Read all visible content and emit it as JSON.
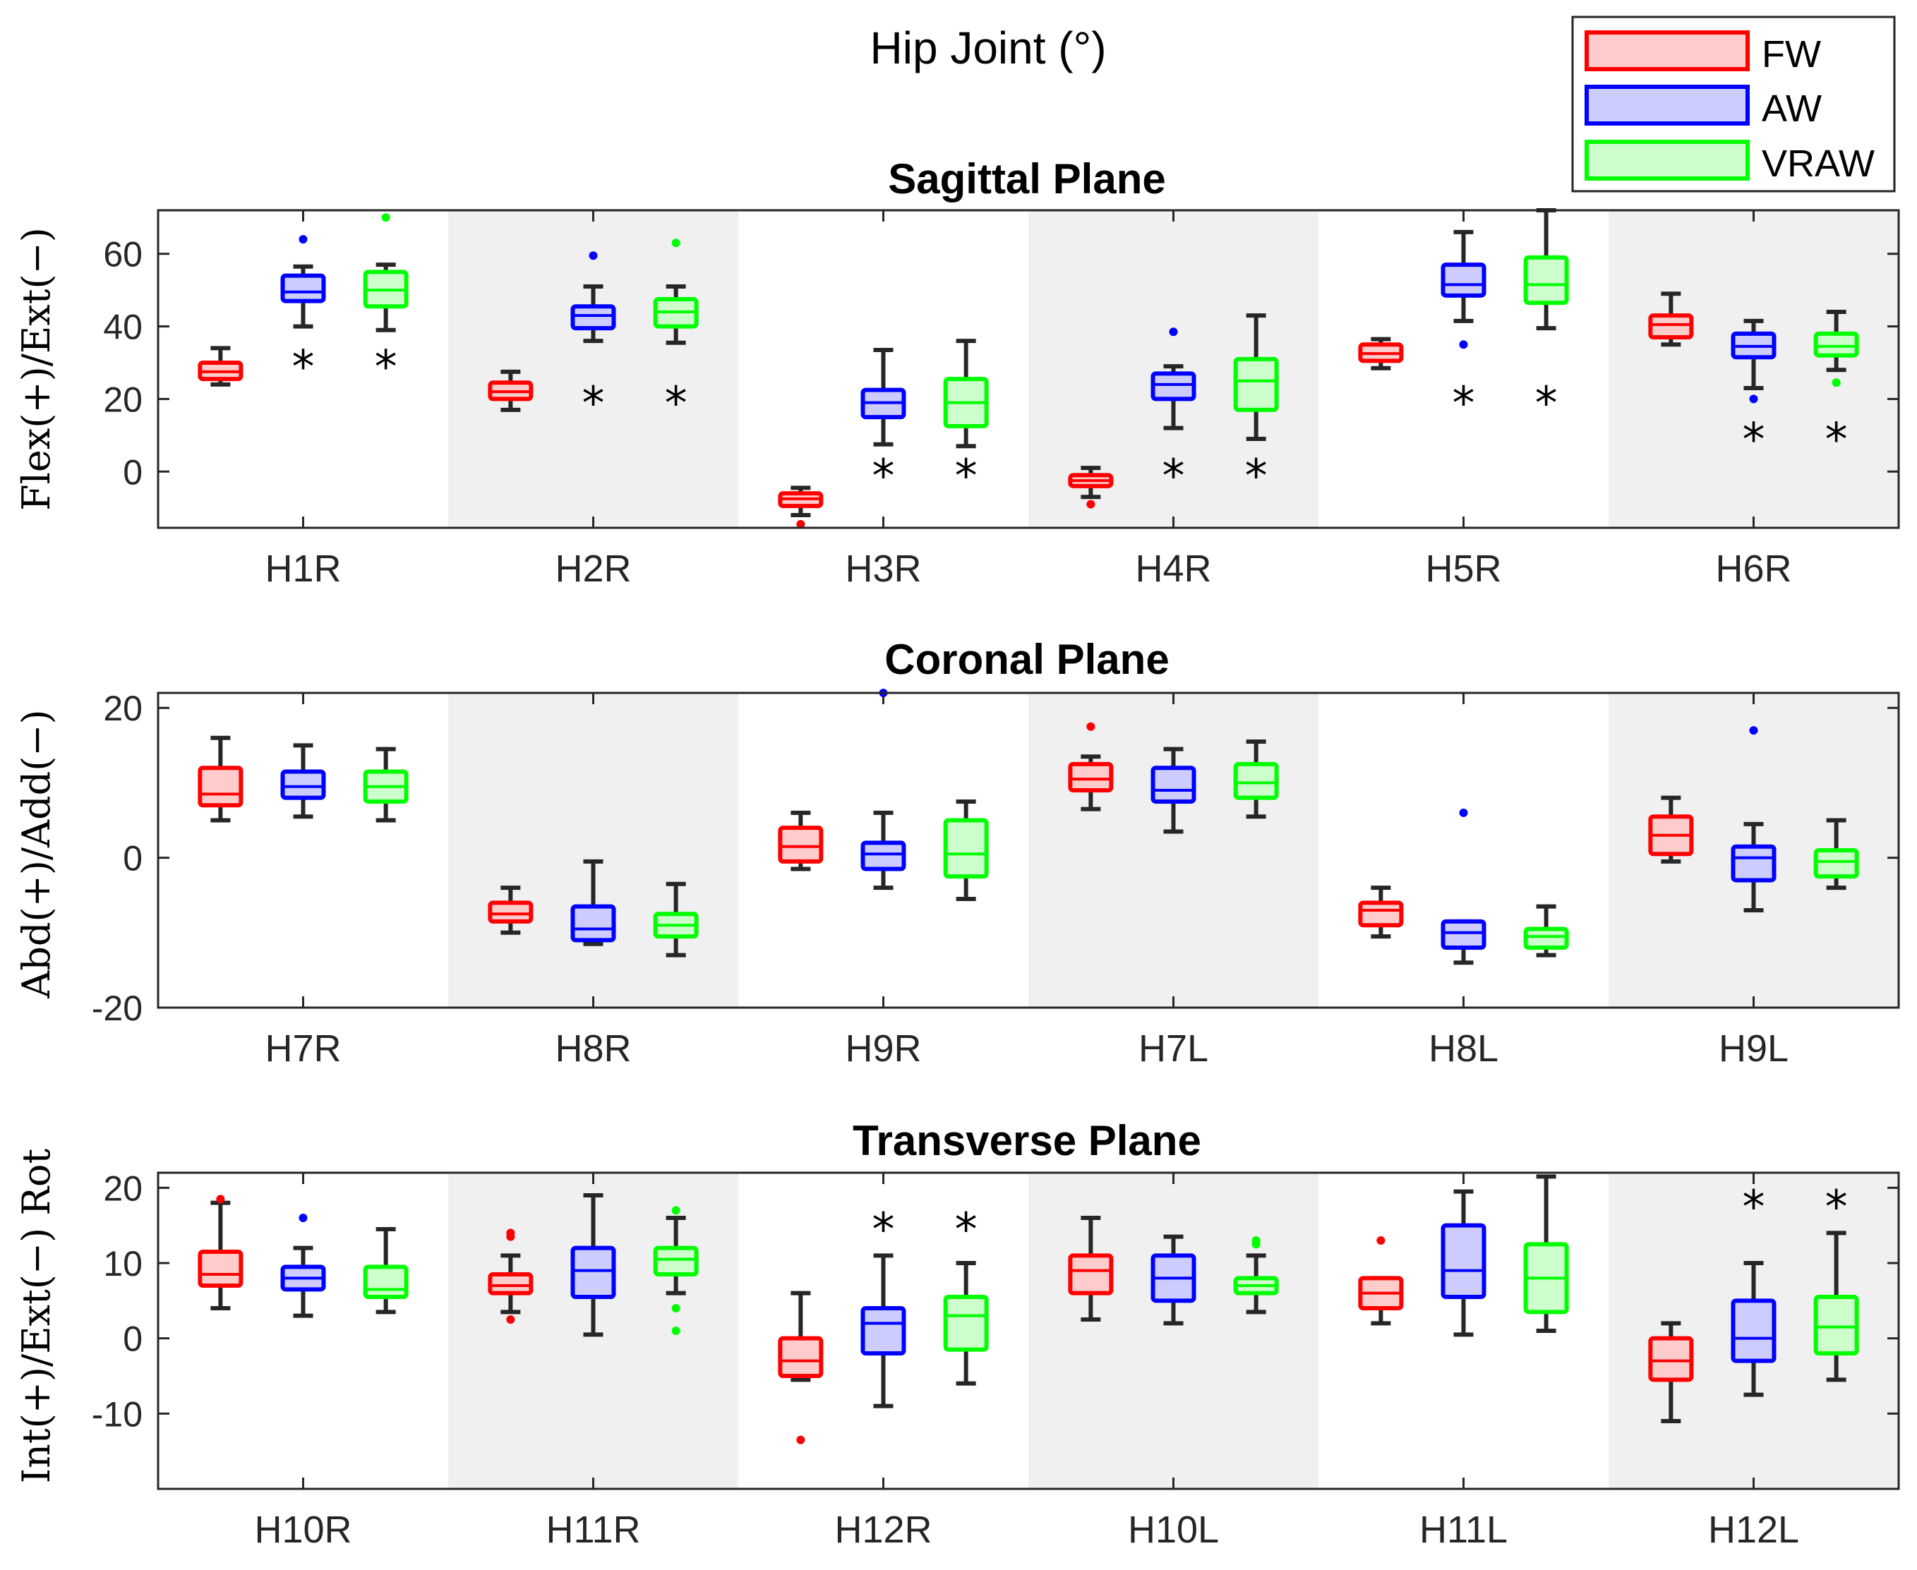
{
  "figure": {
    "title": "Hip Joint (°)"
  },
  "legend": {
    "position": "top-right",
    "entries": [
      {
        "name": "FW",
        "edge": "#ff0000",
        "fill": "#ffcccc"
      },
      {
        "name": "AW",
        "edge": "#0000ff",
        "fill": "#ccccff"
      },
      {
        "name": "VRAW",
        "edge": "#00ff00",
        "fill": "#ccffcc"
      }
    ]
  },
  "colors": {
    "shade": "#f0f0f0",
    "axis": "#262626",
    "whisker": "#262626"
  },
  "chart_data": [
    {
      "type": "box",
      "title": "Sagittal Plane",
      "ylabel": "Flex(+)/Ext(−)",
      "ylim": [
        -15.5,
        72
      ],
      "yticks": [
        0,
        20,
        40,
        60
      ],
      "ytick_labels": [
        "0",
        "20",
        "40",
        "60"
      ],
      "significance_marker": "*",
      "groups": [
        {
          "label": "H1R",
          "shaded": false,
          "boxes": {
            "FW": {
              "min": 24,
              "q1": 25.5,
              "median": 27.5,
              "q3": 30,
              "max": 34,
              "outliers": [],
              "sig": null
            },
            "AW": {
              "min": 40,
              "q1": 47,
              "median": 49.5,
              "q3": 54,
              "max": 56.5,
              "outliers": [
                64
              ],
              "sig": 30
            },
            "VRAW": {
              "min": 39,
              "q1": 45.5,
              "median": 50,
              "q3": 55,
              "max": 57,
              "outliers": [
                70
              ],
              "sig": 30
            }
          }
        },
        {
          "label": "H2R",
          "shaded": true,
          "boxes": {
            "FW": {
              "min": 17,
              "q1": 20,
              "median": 22,
              "q3": 24.5,
              "max": 27.5,
              "outliers": [],
              "sig": null
            },
            "AW": {
              "min": 36,
              "q1": 39.5,
              "median": 43,
              "q3": 45.5,
              "max": 51,
              "outliers": [
                59.5
              ],
              "sig": 20
            },
            "VRAW": {
              "min": 35.5,
              "q1": 40,
              "median": 44,
              "q3": 47.5,
              "max": 51,
              "outliers": [
                63
              ],
              "sig": 20
            }
          }
        },
        {
          "label": "H3R",
          "shaded": false,
          "boxes": {
            "FW": {
              "min": -12,
              "q1": -9.5,
              "median": -7.5,
              "q3": -6,
              "max": -4.5,
              "outliers": [
                -14.5
              ],
              "sig": null
            },
            "AW": {
              "min": 7.5,
              "q1": 15,
              "median": 19,
              "q3": 22.5,
              "max": 33.5,
              "outliers": [],
              "sig": 0
            },
            "VRAW": {
              "min": 7,
              "q1": 12.5,
              "median": 19,
              "q3": 25.5,
              "max": 36,
              "outliers": [],
              "sig": 0
            }
          }
        },
        {
          "label": "H4R",
          "shaded": true,
          "boxes": {
            "FW": {
              "min": -7,
              "q1": -4,
              "median": -2.5,
              "q3": -1,
              "max": 1,
              "outliers": [
                -9
              ],
              "sig": null
            },
            "AW": {
              "min": 12,
              "q1": 20,
              "median": 24,
              "q3": 27,
              "max": 29,
              "outliers": [
                38.5
              ],
              "sig": 0
            },
            "VRAW": {
              "min": 9,
              "q1": 17,
              "median": 25,
              "q3": 31,
              "max": 43,
              "outliers": [],
              "sig": 0
            }
          }
        },
        {
          "label": "H5R",
          "shaded": false,
          "boxes": {
            "FW": {
              "min": 28.5,
              "q1": 30.5,
              "median": 32.5,
              "q3": 35,
              "max": 36.5,
              "outliers": [],
              "sig": null
            },
            "AW": {
              "min": 41.5,
              "q1": 48.5,
              "median": 51.5,
              "q3": 57,
              "max": 66,
              "outliers": [
                35
              ],
              "sig": 20
            },
            "VRAW": {
              "min": 39.5,
              "q1": 46.5,
              "median": 51.5,
              "q3": 59,
              "max": 72,
              "outliers": [],
              "sig": 20
            }
          }
        },
        {
          "label": "H6R",
          "shaded": true,
          "boxes": {
            "FW": {
              "min": 35,
              "q1": 37,
              "median": 40.5,
              "q3": 43,
              "max": 49,
              "outliers": [],
              "sig": null
            },
            "AW": {
              "min": 23,
              "q1": 31.5,
              "median": 34.5,
              "q3": 38,
              "max": 41.5,
              "outliers": [
                20
              ],
              "sig": 10
            },
            "VRAW": {
              "min": 28,
              "q1": 32,
              "median": 34.5,
              "q3": 38,
              "max": 44,
              "outliers": [
                24.5
              ],
              "sig": 10
            }
          }
        }
      ]
    },
    {
      "type": "box",
      "title": "Coronal Plane",
      "ylabel": "Abd(+)/Add(−)",
      "ylim": [
        -20,
        22
      ],
      "yticks": [
        -20,
        0,
        20
      ],
      "ytick_labels": [
        "-20",
        "0",
        "20"
      ],
      "significance_marker": "*",
      "groups": [
        {
          "label": "H7R",
          "shaded": false,
          "boxes": {
            "FW": {
              "min": 5,
              "q1": 7,
              "median": 8.5,
              "q3": 12,
              "max": 16,
              "outliers": [],
              "sig": null
            },
            "AW": {
              "min": 5.5,
              "q1": 8,
              "median": 9.5,
              "q3": 11.5,
              "max": 15,
              "outliers": [],
              "sig": null
            },
            "VRAW": {
              "min": 5,
              "q1": 7.5,
              "median": 9.5,
              "q3": 11.5,
              "max": 14.5,
              "outliers": [],
              "sig": null
            }
          }
        },
        {
          "label": "H8R",
          "shaded": true,
          "boxes": {
            "FW": {
              "min": -10,
              "q1": -8.5,
              "median": -7.5,
              "q3": -6,
              "max": -4,
              "outliers": [],
              "sig": null
            },
            "AW": {
              "min": -11.5,
              "q1": -11,
              "median": -9.5,
              "q3": -6.5,
              "max": -0.5,
              "outliers": [],
              "sig": null
            },
            "VRAW": {
              "min": -13,
              "q1": -10.5,
              "median": -9,
              "q3": -7.5,
              "max": -3.5,
              "outliers": [],
              "sig": null
            }
          }
        },
        {
          "label": "H9R",
          "shaded": false,
          "boxes": {
            "FW": {
              "min": -1.5,
              "q1": -0.5,
              "median": 1.5,
              "q3": 4,
              "max": 6,
              "outliers": [],
              "sig": null
            },
            "AW": {
              "min": -4,
              "q1": -1.5,
              "median": 0.5,
              "q3": 2,
              "max": 6,
              "outliers": [
                22
              ],
              "sig": null
            },
            "VRAW": {
              "min": -5.5,
              "q1": -2.5,
              "median": 0.5,
              "q3": 5,
              "max": 7.5,
              "outliers": [],
              "sig": null
            }
          }
        },
        {
          "label": "H7L",
          "shaded": true,
          "boxes": {
            "FW": {
              "min": 6.5,
              "q1": 9,
              "median": 10.5,
              "q3": 12.5,
              "max": 13.5,
              "outliers": [
                17.5
              ],
              "sig": null
            },
            "AW": {
              "min": 3.5,
              "q1": 7.5,
              "median": 9,
              "q3": 12,
              "max": 14.5,
              "outliers": [],
              "sig": null
            },
            "VRAW": {
              "min": 5.5,
              "q1": 8,
              "median": 10,
              "q3": 12.5,
              "max": 15.5,
              "outliers": [],
              "sig": null
            }
          }
        },
        {
          "label": "H8L",
          "shaded": false,
          "boxes": {
            "FW": {
              "min": -10.5,
              "q1": -9,
              "median": -7,
              "q3": -6,
              "max": -4,
              "outliers": [],
              "sig": null
            },
            "AW": {
              "min": -14,
              "q1": -12,
              "median": -10,
              "q3": -8.5,
              "max": -8.5,
              "outliers": [
                6
              ],
              "sig": null
            },
            "VRAW": {
              "min": -13,
              "q1": -12,
              "median": -10.5,
              "q3": -9.5,
              "max": -6.5,
              "outliers": [],
              "sig": null
            }
          }
        },
        {
          "label": "H9L",
          "shaded": true,
          "boxes": {
            "FW": {
              "min": -0.5,
              "q1": 0.5,
              "median": 3,
              "q3": 5.5,
              "max": 8,
              "outliers": [],
              "sig": null
            },
            "AW": {
              "min": -7,
              "q1": -3,
              "median": 0,
              "q3": 1.5,
              "max": 4.5,
              "outliers": [
                17
              ],
              "sig": null
            },
            "VRAW": {
              "min": -4,
              "q1": -2.5,
              "median": -0.5,
              "q3": 1,
              "max": 5,
              "outliers": [],
              "sig": null
            }
          }
        }
      ]
    },
    {
      "type": "box",
      "title": "Transverse Plane",
      "ylabel": "Int(+)/Ext(−) Rot",
      "ylim": [
        -20,
        22
      ],
      "yticks": [
        -10,
        0,
        10,
        20
      ],
      "ytick_labels": [
        "-10",
        "0",
        "10",
        "20"
      ],
      "significance_marker": "*",
      "groups": [
        {
          "label": "H10R",
          "shaded": false,
          "boxes": {
            "FW": {
              "min": 4,
              "q1": 7,
              "median": 8.5,
              "q3": 11.5,
              "max": 18,
              "outliers": [
                18.5
              ],
              "sig": null
            },
            "AW": {
              "min": 3,
              "q1": 6.5,
              "median": 8,
              "q3": 9.5,
              "max": 12,
              "outliers": [
                16
              ],
              "sig": null
            },
            "VRAW": {
              "min": 3.5,
              "q1": 5.5,
              "median": 6.5,
              "q3": 9.5,
              "max": 14.5,
              "outliers": [],
              "sig": null
            }
          }
        },
        {
          "label": "H11R",
          "shaded": true,
          "boxes": {
            "FW": {
              "min": 3.5,
              "q1": 6,
              "median": 7,
              "q3": 8.5,
              "max": 11,
              "outliers": [
                13.5,
                14,
                2.5
              ],
              "sig": null
            },
            "AW": {
              "min": 0.5,
              "q1": 5.5,
              "median": 9,
              "q3": 12,
              "max": 19,
              "outliers": [],
              "sig": null
            },
            "VRAW": {
              "min": 6,
              "q1": 8.5,
              "median": 10.5,
              "q3": 12,
              "max": 16,
              "outliers": [
                17,
                4,
                1
              ],
              "sig": null
            }
          }
        },
        {
          "label": "H12R",
          "shaded": false,
          "boxes": {
            "FW": {
              "min": -5.5,
              "q1": -5,
              "median": -3,
              "q3": 0,
              "max": 6,
              "outliers": [
                -13.5
              ],
              "sig": null
            },
            "AW": {
              "min": -9,
              "q1": -2,
              "median": 2,
              "q3": 4,
              "max": 11,
              "outliers": [],
              "sig": 15
            },
            "VRAW": {
              "min": -6,
              "q1": -1.5,
              "median": 3,
              "q3": 5.5,
              "max": 10,
              "outliers": [],
              "sig": 15
            }
          }
        },
        {
          "label": "H10L",
          "shaded": true,
          "boxes": {
            "FW": {
              "min": 2.5,
              "q1": 6,
              "median": 9,
              "q3": 11,
              "max": 16,
              "outliers": [],
              "sig": null
            },
            "AW": {
              "min": 2,
              "q1": 5,
              "median": 8,
              "q3": 11,
              "max": 13.5,
              "outliers": [],
              "sig": null
            },
            "VRAW": {
              "min": 3.5,
              "q1": 6,
              "median": 7,
              "q3": 8,
              "max": 11,
              "outliers": [
                13,
                12.5
              ],
              "sig": null
            }
          }
        },
        {
          "label": "H11L",
          "shaded": false,
          "boxes": {
            "FW": {
              "min": 2,
              "q1": 4,
              "median": 6,
              "q3": 8,
              "max": 8,
              "outliers": [
                13
              ],
              "sig": null
            },
            "AW": {
              "min": 0.5,
              "q1": 5.5,
              "median": 9,
              "q3": 15,
              "max": 19.5,
              "outliers": [],
              "sig": null
            },
            "VRAW": {
              "min": 1,
              "q1": 3.5,
              "median": 8,
              "q3": 12.5,
              "max": 21.5,
              "outliers": [],
              "sig": null
            }
          }
        },
        {
          "label": "H12L",
          "shaded": true,
          "boxes": {
            "FW": {
              "min": -11,
              "q1": -5.5,
              "median": -3,
              "q3": 0,
              "max": 2,
              "outliers": [],
              "sig": null
            },
            "AW": {
              "min": -7.5,
              "q1": -3,
              "median": 0,
              "q3": 5,
              "max": 10,
              "outliers": [],
              "sig": 18
            },
            "VRAW": {
              "min": -5.5,
              "q1": -2,
              "median": 1.5,
              "q3": 5.5,
              "max": 14,
              "outliers": [],
              "sig": 18
            }
          }
        }
      ]
    }
  ]
}
